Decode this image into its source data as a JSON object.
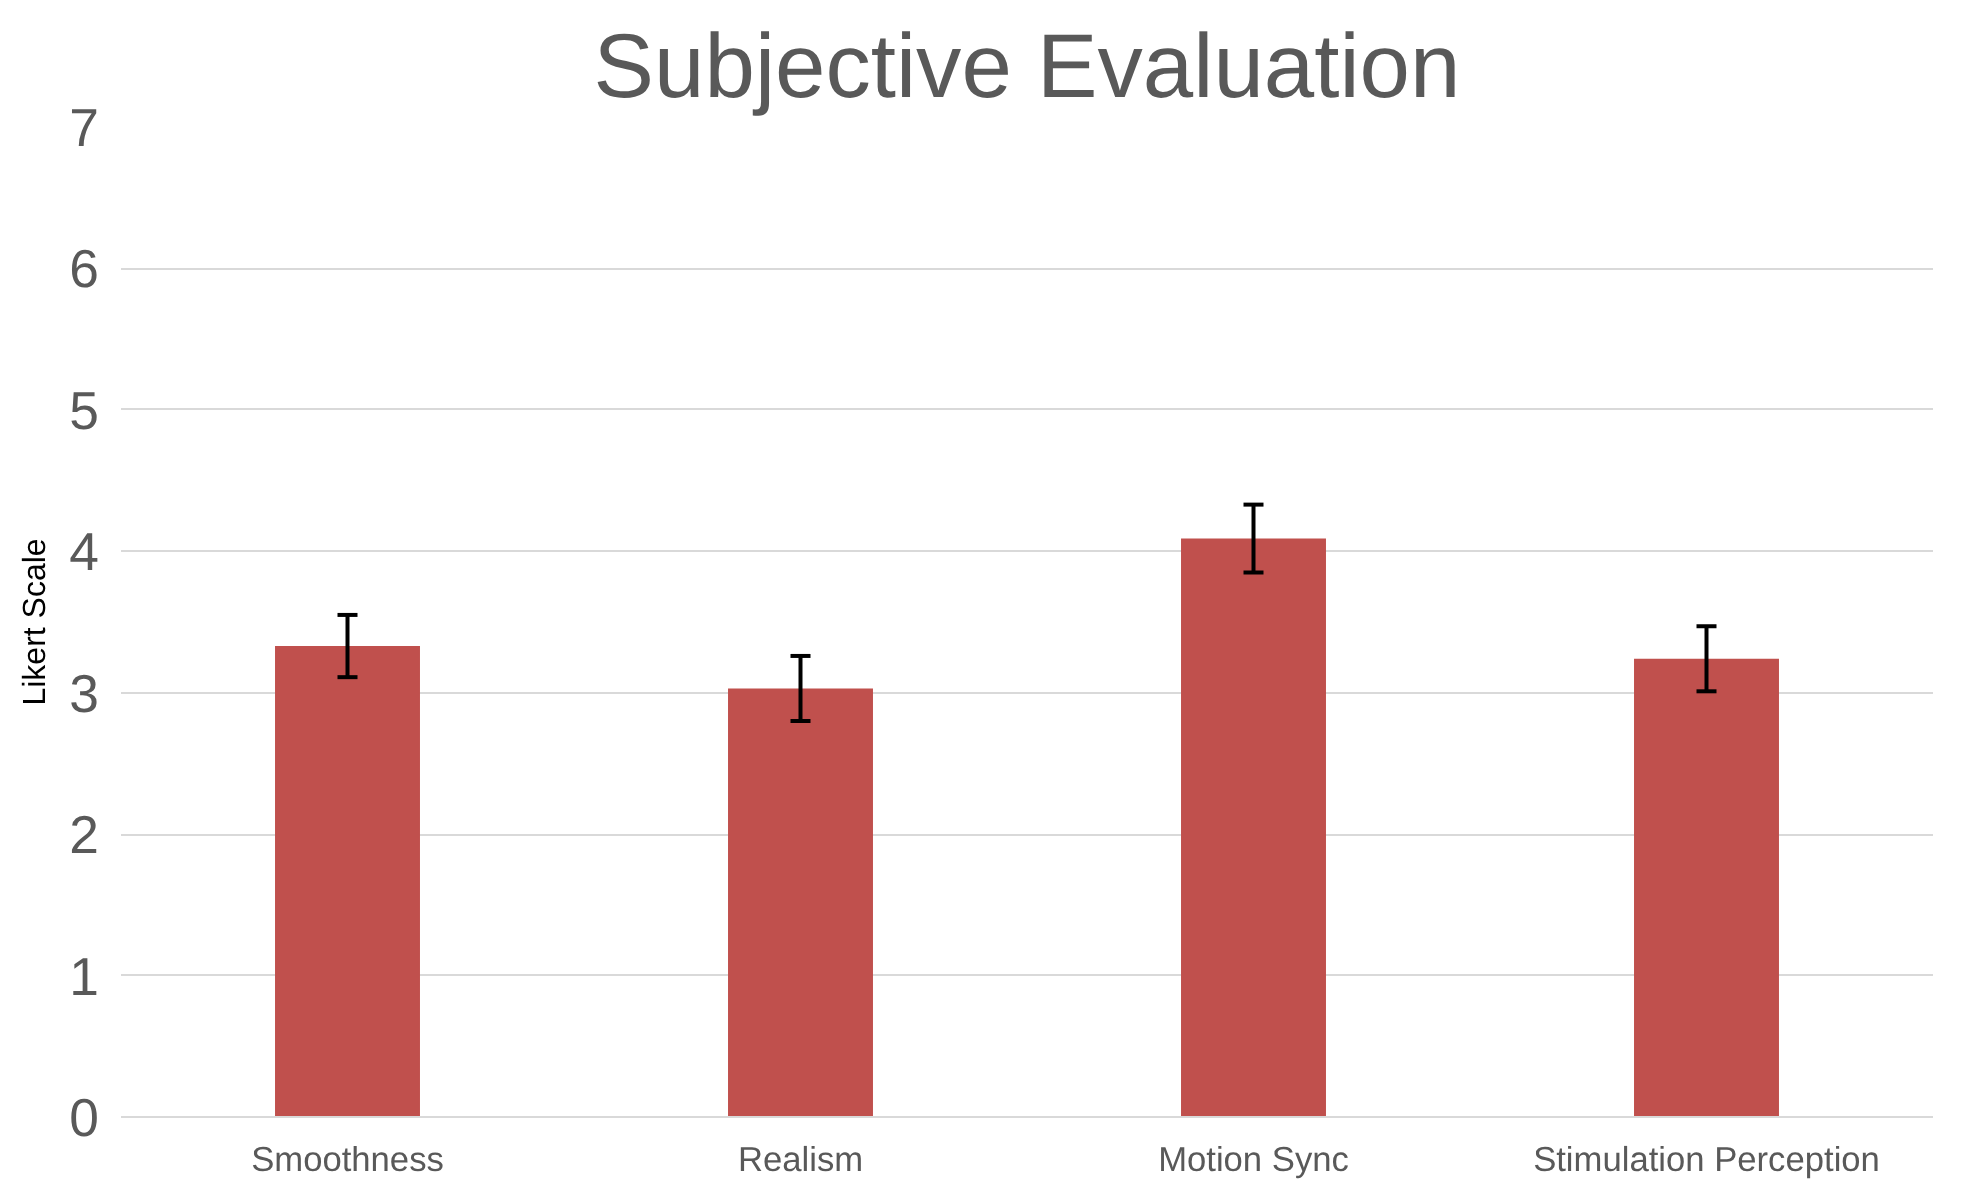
{
  "chart_data": {
    "type": "bar",
    "title": "Subjective Evaluation",
    "ylabel": "Likert Scale",
    "categories": [
      "Smoothness",
      "Realism",
      "Motion Sync",
      "Stimulation Perception"
    ],
    "values": [
      3.33,
      3.03,
      4.09,
      3.24
    ],
    "errors": [
      0.22,
      0.23,
      0.24,
      0.23
    ],
    "color": "#c0504d",
    "ylim": [
      0,
      7
    ],
    "yticks": [
      0,
      1,
      2,
      3,
      4,
      5,
      6,
      7
    ],
    "grid": "y"
  }
}
